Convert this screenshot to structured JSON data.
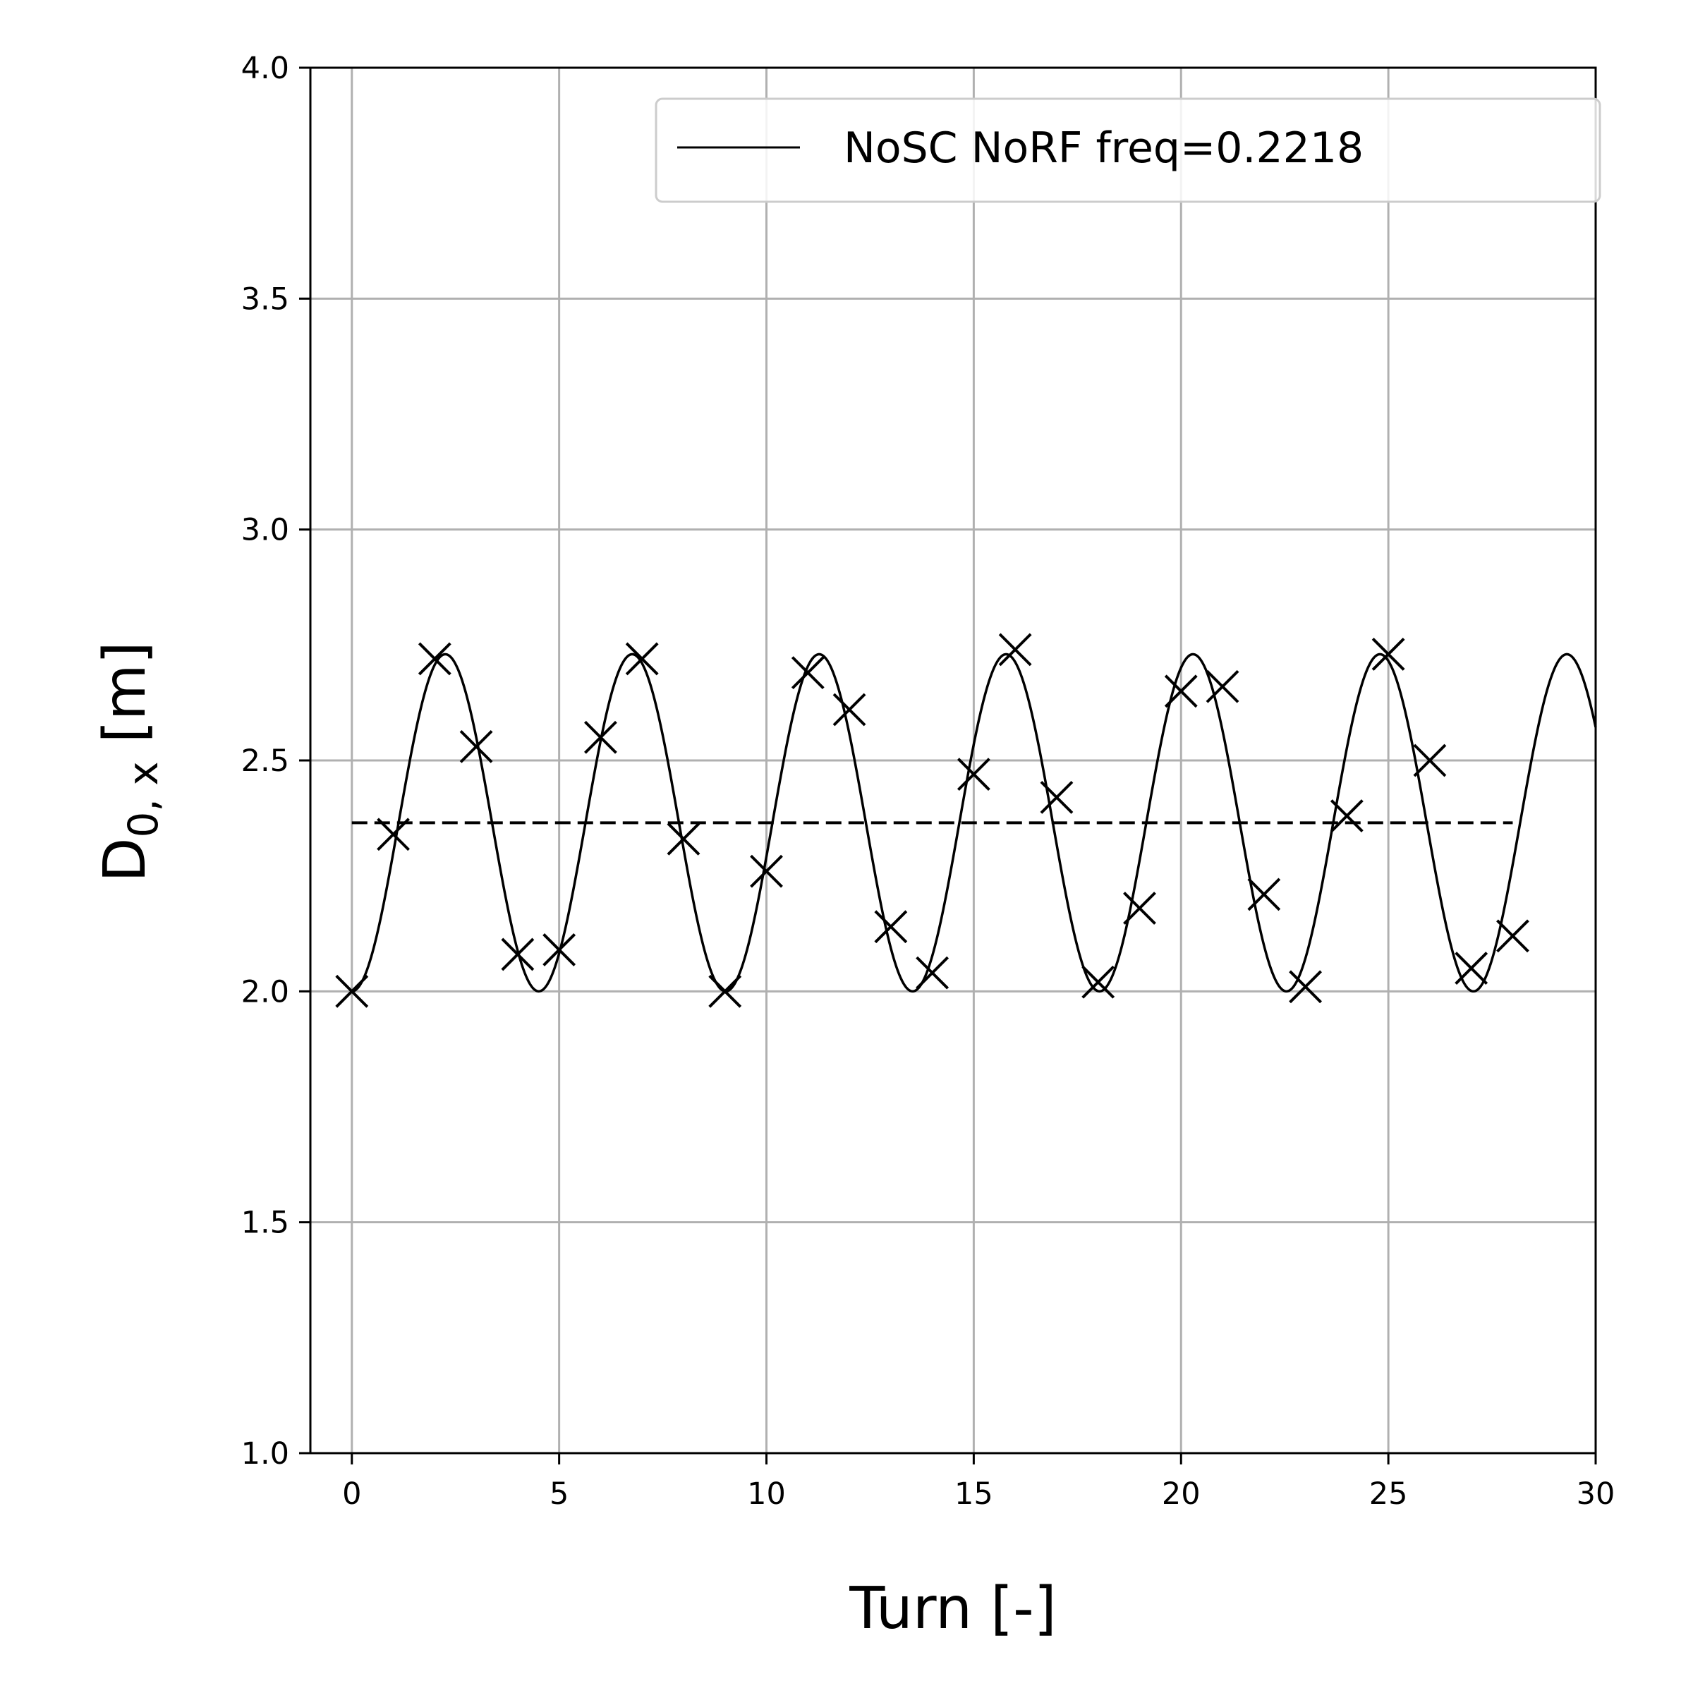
{
  "chart_data": {
    "type": "line",
    "title": "",
    "xlabel": "Turn [-]",
    "ylabel": {
      "main": "D",
      "sub": "0, x",
      "unit": "[m]"
    },
    "xlim": [
      -1,
      30
    ],
    "ylim": [
      1.0,
      4.0
    ],
    "xticks": [
      0,
      5,
      10,
      15,
      20,
      25,
      30
    ],
    "xtick_labels": [
      "0",
      "5",
      "10",
      "15",
      "20",
      "25",
      "30"
    ],
    "yticks": [
      1.0,
      1.5,
      2.0,
      2.5,
      3.0,
      3.5,
      4.0
    ],
    "ytick_labels": [
      "1.0",
      "1.5",
      "2.0",
      "2.5",
      "3.0",
      "3.5",
      "4.0"
    ],
    "grid": true,
    "legend": {
      "position": "top-right",
      "entries": [
        "NoSC NoRF freq=0.2218"
      ]
    },
    "colors": {
      "line": "#000000",
      "grid": "#b0b0b0",
      "legend_border": "#cccccc"
    },
    "series": [
      {
        "name": "NoSC NoRF freq=0.2218",
        "kind": "fit",
        "style": "solid",
        "function": "mean - amplitude*cos(2*pi*freq*x)",
        "freq": 0.2218,
        "mean": 2.365,
        "amplitude": 0.365,
        "x_range": [
          0,
          30
        ]
      },
      {
        "kind": "markers",
        "marker": "x",
        "x": [
          0,
          1,
          2,
          3,
          4,
          5,
          6,
          7,
          8,
          9,
          10,
          11,
          12,
          13,
          14,
          15,
          16,
          17,
          18,
          19,
          20,
          21,
          22,
          23,
          24,
          25,
          26,
          27,
          28
        ],
        "y": [
          2.0,
          2.34,
          2.72,
          2.53,
          2.08,
          2.09,
          2.55,
          2.72,
          2.33,
          2.0,
          2.26,
          2.69,
          2.61,
          2.14,
          2.04,
          2.47,
          2.74,
          2.42,
          2.02,
          2.18,
          2.65,
          2.66,
          2.21,
          2.01,
          2.38,
          2.73,
          2.5,
          2.05,
          2.12
        ]
      },
      {
        "kind": "mean",
        "style": "dashed",
        "y": 2.365,
        "x_range": [
          0,
          28
        ]
      }
    ]
  }
}
